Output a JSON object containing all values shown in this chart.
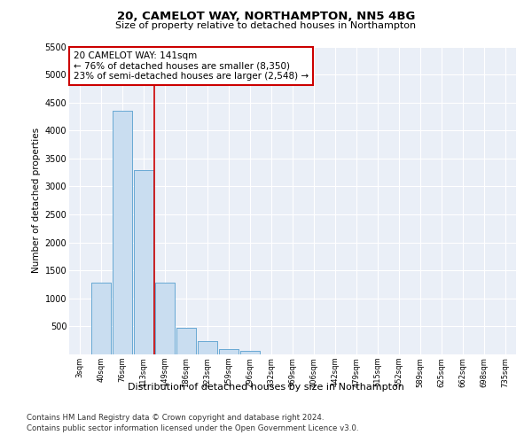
{
  "title1": "20, CAMELOT WAY, NORTHAMPTON, NN5 4BG",
  "title2": "Size of property relative to detached houses in Northampton",
  "xlabel": "Distribution of detached houses by size in Northampton",
  "ylabel": "Number of detached properties",
  "footer1": "Contains HM Land Registry data © Crown copyright and database right 2024.",
  "footer2": "Contains public sector information licensed under the Open Government Licence v3.0.",
  "annotation_line1": "20 CAMELOT WAY: 141sqm",
  "annotation_line2": "← 76% of detached houses are smaller (8,350)",
  "annotation_line3": "23% of semi-detached houses are larger (2,548) →",
  "bar_color": "#c9ddf0",
  "bar_edge_color": "#6aaad4",
  "vline_color": "#cc0000",
  "vline_x_idx": 4,
  "categories": [
    "3sqm",
    "40sqm",
    "76sqm",
    "113sqm",
    "149sqm",
    "186sqm",
    "223sqm",
    "259sqm",
    "296sqm",
    "332sqm",
    "369sqm",
    "406sqm",
    "442sqm",
    "479sqm",
    "515sqm",
    "552sqm",
    "589sqm",
    "625sqm",
    "662sqm",
    "698sqm",
    "735sqm"
  ],
  "values": [
    0,
    1280,
    4350,
    3300,
    1280,
    480,
    240,
    100,
    60,
    0,
    0,
    0,
    0,
    0,
    0,
    0,
    0,
    0,
    0,
    0,
    0
  ],
  "ylim": [
    0,
    5500
  ],
  "yticks": [
    0,
    500,
    1000,
    1500,
    2000,
    2500,
    3000,
    3500,
    4000,
    4500,
    5000,
    5500
  ],
  "background_color": "#eaeff7",
  "grid_color": "#ffffff",
  "annotation_box_edge": "#cc0000",
  "fig_width": 6.0,
  "fig_height": 5.0,
  "dpi": 100
}
